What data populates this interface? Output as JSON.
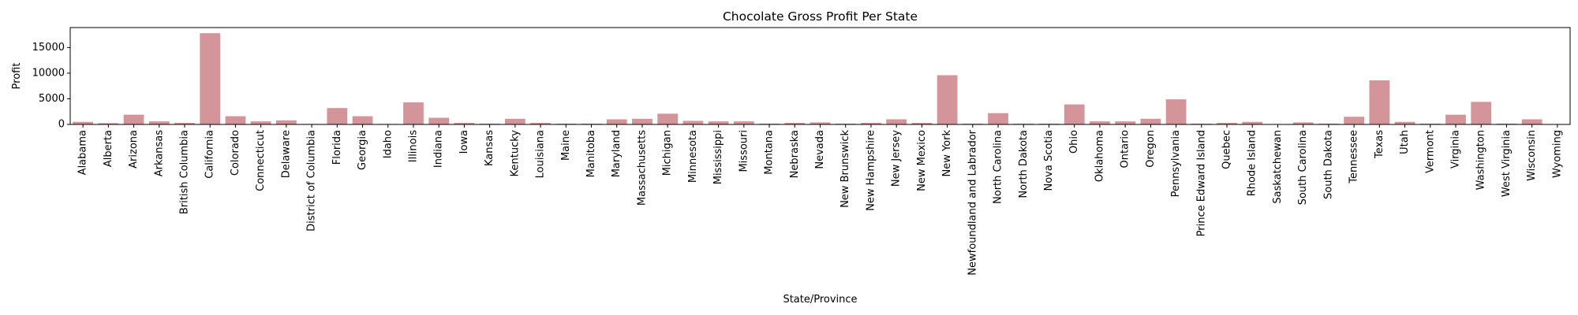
{
  "chart_data": {
    "type": "bar",
    "title": "Chocolate Gross Profit Per State",
    "xlabel": "State/Province",
    "ylabel": "Profit",
    "ylim": [
      0,
      18900
    ],
    "yticks": [
      0,
      5000,
      10000,
      15000
    ],
    "ytick_labels": [
      "0",
      "5000",
      "10000",
      "15000"
    ],
    "bar_color": "#d4959a",
    "grid": false,
    "categories": [
      "Alabama",
      "Alberta",
      "Arizona",
      "Arkansas",
      "British Columbia",
      "California",
      "Colorado",
      "Connecticut",
      "Delaware",
      "District of Columbia",
      "Florida",
      "Georgia",
      "Idaho",
      "Illinois",
      "Indiana",
      "Iowa",
      "Kansas",
      "Kentucky",
      "Louisiana",
      "Maine",
      "Manitoba",
      "Maryland",
      "Massachusetts",
      "Michigan",
      "Minnesota",
      "Mississippi",
      "Missouri",
      "Montana",
      "Nebraska",
      "Nevada",
      "New Brunswick",
      "New Hampshire",
      "New Jersey",
      "New Mexico",
      "New York",
      "Newfoundland and Labrador",
      "North Carolina",
      "North Dakota",
      "Nova Scotia",
      "Ohio",
      "Oklahoma",
      "Ontario",
      "Oregon",
      "Pennsylvania",
      "Prince Edward Island",
      "Quebec",
      "Rhode Island",
      "Saskatchewan",
      "South Carolina",
      "South Dakota",
      "Tennessee",
      "Texas",
      "Utah",
      "Vermont",
      "Virginia",
      "Washington",
      "West Virginia",
      "Wisconsin",
      "Wyoming"
    ],
    "values": [
      500,
      250,
      1900,
      600,
      300,
      17800,
      1600,
      600,
      800,
      100,
      3200,
      1600,
      100,
      4300,
      1300,
      300,
      150,
      1100,
      300,
      150,
      150,
      1000,
      1100,
      2100,
      700,
      600,
      600,
      150,
      300,
      400,
      150,
      300,
      1000,
      300,
      9600,
      150,
      2200,
      150,
      150,
      3900,
      600,
      600,
      1100,
      4900,
      150,
      300,
      500,
      50,
      400,
      150,
      1500,
      8600,
      500,
      150,
      1900,
      4400,
      150,
      1000,
      50
    ]
  }
}
